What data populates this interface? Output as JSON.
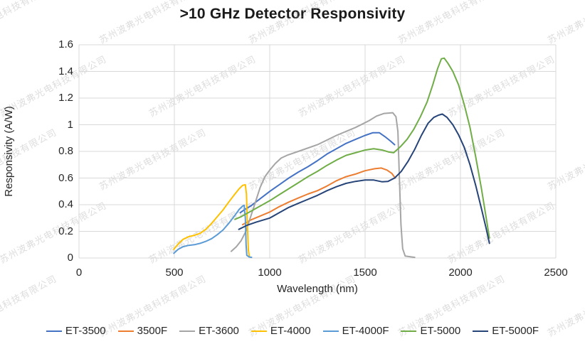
{
  "watermark": "苏州波弗光电科技有限公司",
  "chart_data": {
    "type": "line",
    "title": ">10 GHz Detector Responsivity",
    "xlabel": "Wavelength (nm)",
    "ylabel": "Responsivity (A/W)",
    "xlim": [
      0,
      2500
    ],
    "ylim": [
      0,
      1.6
    ],
    "x_ticks": [
      0,
      500,
      1000,
      1500,
      2000,
      2500
    ],
    "y_ticks": [
      0,
      0.2,
      0.4,
      0.6,
      0.8,
      1,
      1.2,
      1.4,
      1.6
    ],
    "grid": true,
    "legend_position": "bottom",
    "series": [
      {
        "name": "ET-3500",
        "color": "#4472C4",
        "points": [
          [
            845,
            0.34
          ],
          [
            870,
            0.365
          ],
          [
            900,
            0.39
          ],
          [
            950,
            0.445
          ],
          [
            1000,
            0.5
          ],
          [
            1050,
            0.55
          ],
          [
            1100,
            0.6
          ],
          [
            1150,
            0.645
          ],
          [
            1200,
            0.685
          ],
          [
            1250,
            0.73
          ],
          [
            1300,
            0.78
          ],
          [
            1350,
            0.82
          ],
          [
            1400,
            0.86
          ],
          [
            1450,
            0.89
          ],
          [
            1500,
            0.92
          ],
          [
            1540,
            0.94
          ],
          [
            1575,
            0.94
          ],
          [
            1605,
            0.91
          ],
          [
            1635,
            0.875
          ],
          [
            1655,
            0.85
          ]
        ]
      },
      {
        "name": "3500F",
        "color": "#ED7D31",
        "points": [
          [
            858,
            0.25
          ],
          [
            900,
            0.285
          ],
          [
            950,
            0.315
          ],
          [
            1000,
            0.345
          ],
          [
            1050,
            0.385
          ],
          [
            1100,
            0.42
          ],
          [
            1150,
            0.45
          ],
          [
            1200,
            0.48
          ],
          [
            1250,
            0.505
          ],
          [
            1300,
            0.54
          ],
          [
            1350,
            0.58
          ],
          [
            1400,
            0.61
          ],
          [
            1450,
            0.63
          ],
          [
            1500,
            0.655
          ],
          [
            1550,
            0.67
          ],
          [
            1585,
            0.675
          ],
          [
            1615,
            0.66
          ],
          [
            1640,
            0.635
          ],
          [
            1658,
            0.6
          ]
        ]
      },
      {
        "name": "ET-3600",
        "color": "#A5A5A5",
        "points": [
          [
            798,
            0.05
          ],
          [
            825,
            0.085
          ],
          [
            850,
            0.13
          ],
          [
            875,
            0.2
          ],
          [
            900,
            0.31
          ],
          [
            925,
            0.42
          ],
          [
            950,
            0.53
          ],
          [
            975,
            0.61
          ],
          [
            1000,
            0.66
          ],
          [
            1030,
            0.71
          ],
          [
            1060,
            0.75
          ],
          [
            1090,
            0.77
          ],
          [
            1150,
            0.8
          ],
          [
            1250,
            0.85
          ],
          [
            1350,
            0.92
          ],
          [
            1450,
            0.98
          ],
          [
            1520,
            1.03
          ],
          [
            1560,
            1.065
          ],
          [
            1600,
            1.085
          ],
          [
            1645,
            1.09
          ],
          [
            1662,
            1.06
          ],
          [
            1672,
            0.95
          ],
          [
            1680,
            0.6
          ],
          [
            1688,
            0.25
          ],
          [
            1697,
            0.07
          ],
          [
            1710,
            0.015
          ],
          [
            1760,
            0.005
          ]
        ]
      },
      {
        "name": "ET-4000",
        "color": "#FFC000",
        "points": [
          [
            497,
            0.065
          ],
          [
            520,
            0.105
          ],
          [
            545,
            0.14
          ],
          [
            575,
            0.16
          ],
          [
            605,
            0.17
          ],
          [
            635,
            0.185
          ],
          [
            665,
            0.215
          ],
          [
            695,
            0.26
          ],
          [
            725,
            0.31
          ],
          [
            755,
            0.36
          ],
          [
            785,
            0.42
          ],
          [
            815,
            0.475
          ],
          [
            840,
            0.52
          ],
          [
            858,
            0.545
          ],
          [
            872,
            0.55
          ],
          [
            878,
            0.48
          ],
          [
            883,
            0.25
          ],
          [
            888,
            0.06
          ],
          [
            893,
            0.015
          ]
        ]
      },
      {
        "name": "ET-4000F",
        "color": "#5B9BD5",
        "points": [
          [
            497,
            0.035
          ],
          [
            520,
            0.065
          ],
          [
            545,
            0.085
          ],
          [
            575,
            0.095
          ],
          [
            605,
            0.1
          ],
          [
            635,
            0.11
          ],
          [
            665,
            0.125
          ],
          [
            695,
            0.145
          ],
          [
            725,
            0.175
          ],
          [
            755,
            0.21
          ],
          [
            785,
            0.26
          ],
          [
            815,
            0.315
          ],
          [
            840,
            0.365
          ],
          [
            858,
            0.39
          ],
          [
            866,
            0.395
          ],
          [
            872,
            0.3
          ],
          [
            876,
            0.1
          ],
          [
            880,
            0.02
          ],
          [
            892,
            0.008
          ],
          [
            905,
            0.005
          ]
        ]
      },
      {
        "name": "ET-5000",
        "color": "#70AD47",
        "points": [
          [
            818,
            0.29
          ],
          [
            850,
            0.31
          ],
          [
            900,
            0.35
          ],
          [
            950,
            0.39
          ],
          [
            1000,
            0.43
          ],
          [
            1050,
            0.475
          ],
          [
            1100,
            0.52
          ],
          [
            1150,
            0.565
          ],
          [
            1200,
            0.61
          ],
          [
            1250,
            0.65
          ],
          [
            1300,
            0.695
          ],
          [
            1350,
            0.735
          ],
          [
            1400,
            0.77
          ],
          [
            1450,
            0.79
          ],
          [
            1500,
            0.81
          ],
          [
            1545,
            0.82
          ],
          [
            1590,
            0.81
          ],
          [
            1625,
            0.795
          ],
          [
            1650,
            0.79
          ],
          [
            1685,
            0.835
          ],
          [
            1720,
            0.89
          ],
          [
            1755,
            0.965
          ],
          [
            1790,
            1.06
          ],
          [
            1825,
            1.17
          ],
          [
            1855,
            1.3
          ],
          [
            1880,
            1.42
          ],
          [
            1900,
            1.495
          ],
          [
            1915,
            1.5
          ],
          [
            1935,
            1.46
          ],
          [
            1960,
            1.4
          ],
          [
            1990,
            1.3
          ],
          [
            2020,
            1.15
          ],
          [
            2050,
            0.98
          ],
          [
            2080,
            0.76
          ],
          [
            2110,
            0.52
          ],
          [
            2135,
            0.3
          ],
          [
            2152,
            0.15
          ]
        ]
      },
      {
        "name": "ET-5000F",
        "color": "#264478",
        "points": [
          [
            838,
            0.215
          ],
          [
            880,
            0.245
          ],
          [
            930,
            0.27
          ],
          [
            1000,
            0.3
          ],
          [
            1050,
            0.34
          ],
          [
            1100,
            0.38
          ],
          [
            1150,
            0.41
          ],
          [
            1200,
            0.44
          ],
          [
            1250,
            0.47
          ],
          [
            1300,
            0.505
          ],
          [
            1350,
            0.535
          ],
          [
            1400,
            0.56
          ],
          [
            1450,
            0.575
          ],
          [
            1500,
            0.585
          ],
          [
            1545,
            0.585
          ],
          [
            1590,
            0.572
          ],
          [
            1620,
            0.575
          ],
          [
            1655,
            0.6
          ],
          [
            1690,
            0.65
          ],
          [
            1725,
            0.725
          ],
          [
            1760,
            0.815
          ],
          [
            1795,
            0.92
          ],
          [
            1830,
            1.01
          ],
          [
            1860,
            1.055
          ],
          [
            1885,
            1.072
          ],
          [
            1905,
            1.08
          ],
          [
            1930,
            1.055
          ],
          [
            1960,
            1.0
          ],
          [
            1990,
            0.925
          ],
          [
            2020,
            0.83
          ],
          [
            2050,
            0.7
          ],
          [
            2080,
            0.545
          ],
          [
            2110,
            0.37
          ],
          [
            2135,
            0.22
          ],
          [
            2152,
            0.11
          ]
        ]
      }
    ]
  }
}
